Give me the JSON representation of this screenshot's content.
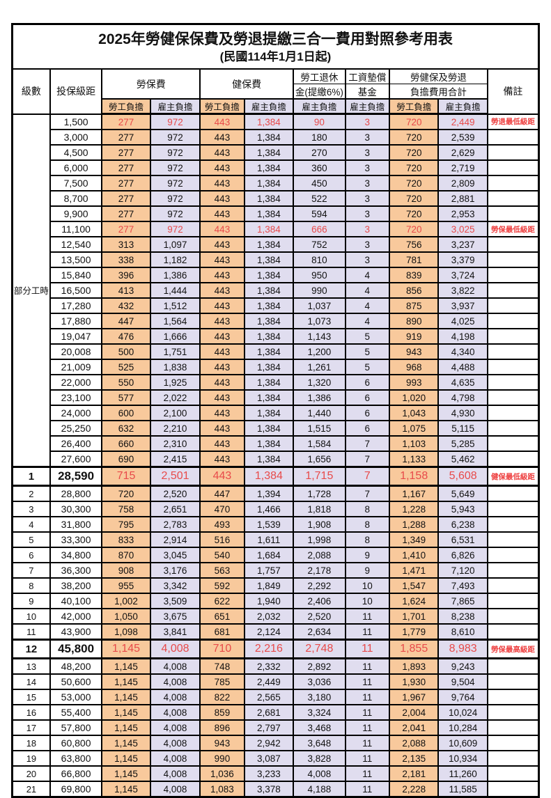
{
  "title": "2025年勞健保保費及勞退提繳三合一費用對照參考用表",
  "subtitle": "(民國114年1月1日起)",
  "headers": {
    "level": "級數",
    "bracket": "投保級距",
    "labor_insurance": "勞保費",
    "health_insurance": "健保費",
    "pension_line1": "勞工退休",
    "pension_line2": "金(提繳6%)",
    "wage_fund_line1": "工資墊償",
    "wage_fund_line2": "基金",
    "total_line1": "勞健保及勞退",
    "total_line2": "負擔費用合計",
    "remark": "備註",
    "employee_burden": "勞工負擔",
    "employer_burden": "雇主負擔"
  },
  "part_time": {
    "label": "部分工時",
    "row_span": 23
  },
  "colors": {
    "employee_bg": "#f8c99c",
    "employer_bg": "#e0ddef",
    "alert_text": "#e84a4a",
    "border": "#000000"
  },
  "rows": [
    {
      "level": "",
      "bracket": "1,500",
      "labor_emp": "277",
      "labor_er": "972",
      "health_emp": "443",
      "health_er": "1,384",
      "pension_er": "90",
      "fund_er": "3",
      "total_emp": "720",
      "total_er": "2,449",
      "remark": "勞退最低級距",
      "style": "alert"
    },
    {
      "level": "",
      "bracket": "3,000",
      "labor_emp": "277",
      "labor_er": "972",
      "health_emp": "443",
      "health_er": "1,384",
      "pension_er": "180",
      "fund_er": "3",
      "total_emp": "720",
      "total_er": "2,539",
      "remark": "",
      "style": ""
    },
    {
      "level": "",
      "bracket": "4,500",
      "labor_emp": "277",
      "labor_er": "972",
      "health_emp": "443",
      "health_er": "1,384",
      "pension_er": "270",
      "fund_er": "3",
      "total_emp": "720",
      "total_er": "2,629",
      "remark": "",
      "style": ""
    },
    {
      "level": "",
      "bracket": "6,000",
      "labor_emp": "277",
      "labor_er": "972",
      "health_emp": "443",
      "health_er": "1,384",
      "pension_er": "360",
      "fund_er": "3",
      "total_emp": "720",
      "total_er": "2,719",
      "remark": "",
      "style": ""
    },
    {
      "level": "",
      "bracket": "7,500",
      "labor_emp": "277",
      "labor_er": "972",
      "health_emp": "443",
      "health_er": "1,384",
      "pension_er": "450",
      "fund_er": "3",
      "total_emp": "720",
      "total_er": "2,809",
      "remark": "",
      "style": ""
    },
    {
      "level": "",
      "bracket": "8,700",
      "labor_emp": "277",
      "labor_er": "972",
      "health_emp": "443",
      "health_er": "1,384",
      "pension_er": "522",
      "fund_er": "3",
      "total_emp": "720",
      "total_er": "2,881",
      "remark": "",
      "style": ""
    },
    {
      "level": "",
      "bracket": "9,900",
      "labor_emp": "277",
      "labor_er": "972",
      "health_emp": "443",
      "health_er": "1,384",
      "pension_er": "594",
      "fund_er": "3",
      "total_emp": "720",
      "total_er": "2,953",
      "remark": "",
      "style": ""
    },
    {
      "level": "",
      "bracket": "11,100",
      "labor_emp": "277",
      "labor_er": "972",
      "health_emp": "443",
      "health_er": "1,384",
      "pension_er": "666",
      "fund_er": "3",
      "total_emp": "720",
      "total_er": "3,025",
      "remark": "勞保最低級距",
      "style": "alert"
    },
    {
      "level": "",
      "bracket": "12,540",
      "labor_emp": "313",
      "labor_er": "1,097",
      "health_emp": "443",
      "health_er": "1,384",
      "pension_er": "752",
      "fund_er": "3",
      "total_emp": "756",
      "total_er": "3,237",
      "remark": "",
      "style": ""
    },
    {
      "level": "",
      "bracket": "13,500",
      "labor_emp": "338",
      "labor_er": "1,182",
      "health_emp": "443",
      "health_er": "1,384",
      "pension_er": "810",
      "fund_er": "3",
      "total_emp": "781",
      "total_er": "3,379",
      "remark": "",
      "style": ""
    },
    {
      "level": "",
      "bracket": "15,840",
      "labor_emp": "396",
      "labor_er": "1,386",
      "health_emp": "443",
      "health_er": "1,384",
      "pension_er": "950",
      "fund_er": "4",
      "total_emp": "839",
      "total_er": "3,724",
      "remark": "",
      "style": ""
    },
    {
      "level": "",
      "bracket": "16,500",
      "labor_emp": "413",
      "labor_er": "1,444",
      "health_emp": "443",
      "health_er": "1,384",
      "pension_er": "990",
      "fund_er": "4",
      "total_emp": "856",
      "total_er": "3,822",
      "remark": "",
      "style": ""
    },
    {
      "level": "",
      "bracket": "17,280",
      "labor_emp": "432",
      "labor_er": "1,512",
      "health_emp": "443",
      "health_er": "1,384",
      "pension_er": "1,037",
      "fund_er": "4",
      "total_emp": "875",
      "total_er": "3,937",
      "remark": "",
      "style": ""
    },
    {
      "level": "",
      "bracket": "17,880",
      "labor_emp": "447",
      "labor_er": "1,564",
      "health_emp": "443",
      "health_er": "1,384",
      "pension_er": "1,073",
      "fund_er": "4",
      "total_emp": "890",
      "total_er": "4,025",
      "remark": "",
      "style": ""
    },
    {
      "level": "",
      "bracket": "19,047",
      "labor_emp": "476",
      "labor_er": "1,666",
      "health_emp": "443",
      "health_er": "1,384",
      "pension_er": "1,143",
      "fund_er": "5",
      "total_emp": "919",
      "total_er": "4,198",
      "remark": "",
      "style": ""
    },
    {
      "level": "",
      "bracket": "20,008",
      "labor_emp": "500",
      "labor_er": "1,751",
      "health_emp": "443",
      "health_er": "1,384",
      "pension_er": "1,200",
      "fund_er": "5",
      "total_emp": "943",
      "total_er": "4,340",
      "remark": "",
      "style": ""
    },
    {
      "level": "",
      "bracket": "21,009",
      "labor_emp": "525",
      "labor_er": "1,838",
      "health_emp": "443",
      "health_er": "1,384",
      "pension_er": "1,261",
      "fund_er": "5",
      "total_emp": "968",
      "total_er": "4,488",
      "remark": "",
      "style": ""
    },
    {
      "level": "",
      "bracket": "22,000",
      "labor_emp": "550",
      "labor_er": "1,925",
      "health_emp": "443",
      "health_er": "1,384",
      "pension_er": "1,320",
      "fund_er": "6",
      "total_emp": "993",
      "total_er": "4,635",
      "remark": "",
      "style": ""
    },
    {
      "level": "",
      "bracket": "23,100",
      "labor_emp": "577",
      "labor_er": "2,022",
      "health_emp": "443",
      "health_er": "1,384",
      "pension_er": "1,386",
      "fund_er": "6",
      "total_emp": "1,020",
      "total_er": "4,798",
      "remark": "",
      "style": ""
    },
    {
      "level": "",
      "bracket": "24,000",
      "labor_emp": "600",
      "labor_er": "2,100",
      "health_emp": "443",
      "health_er": "1,384",
      "pension_er": "1,440",
      "fund_er": "6",
      "total_emp": "1,043",
      "total_er": "4,930",
      "remark": "",
      "style": ""
    },
    {
      "level": "",
      "bracket": "25,250",
      "labor_emp": "632",
      "labor_er": "2,210",
      "health_emp": "443",
      "health_er": "1,384",
      "pension_er": "1,515",
      "fund_er": "6",
      "total_emp": "1,075",
      "total_er": "5,115",
      "remark": "",
      "style": ""
    },
    {
      "level": "",
      "bracket": "26,400",
      "labor_emp": "660",
      "labor_er": "2,310",
      "health_emp": "443",
      "health_er": "1,384",
      "pension_er": "1,584",
      "fund_er": "7",
      "total_emp": "1,103",
      "total_er": "5,285",
      "remark": "",
      "style": ""
    },
    {
      "level": "",
      "bracket": "27,600",
      "labor_emp": "690",
      "labor_er": "2,415",
      "health_emp": "443",
      "health_er": "1,384",
      "pension_er": "1,656",
      "fund_er": "7",
      "total_emp": "1,133",
      "total_er": "5,462",
      "remark": "",
      "style": ""
    },
    {
      "level": "1",
      "bracket": "28,590",
      "labor_emp": "715",
      "labor_er": "2,501",
      "health_emp": "443",
      "health_er": "1,384",
      "pension_er": "1,715",
      "fund_er": "7",
      "total_emp": "1,158",
      "total_er": "5,608",
      "remark": "健保最低級距",
      "style": "emphasis"
    },
    {
      "level": "2",
      "bracket": "28,800",
      "labor_emp": "720",
      "labor_er": "2,520",
      "health_emp": "447",
      "health_er": "1,394",
      "pension_er": "1,728",
      "fund_er": "7",
      "total_emp": "1,167",
      "total_er": "5,649",
      "remark": "",
      "style": ""
    },
    {
      "level": "3",
      "bracket": "30,300",
      "labor_emp": "758",
      "labor_er": "2,651",
      "health_emp": "470",
      "health_er": "1,466",
      "pension_er": "1,818",
      "fund_er": "8",
      "total_emp": "1,228",
      "total_er": "5,943",
      "remark": "",
      "style": ""
    },
    {
      "level": "4",
      "bracket": "31,800",
      "labor_emp": "795",
      "labor_er": "2,783",
      "health_emp": "493",
      "health_er": "1,539",
      "pension_er": "1,908",
      "fund_er": "8",
      "total_emp": "1,288",
      "total_er": "6,238",
      "remark": "",
      "style": ""
    },
    {
      "level": "5",
      "bracket": "33,300",
      "labor_emp": "833",
      "labor_er": "2,914",
      "health_emp": "516",
      "health_er": "1,611",
      "pension_er": "1,998",
      "fund_er": "8",
      "total_emp": "1,349",
      "total_er": "6,531",
      "remark": "",
      "style": ""
    },
    {
      "level": "6",
      "bracket": "34,800",
      "labor_emp": "870",
      "labor_er": "3,045",
      "health_emp": "540",
      "health_er": "1,684",
      "pension_er": "2,088",
      "fund_er": "9",
      "total_emp": "1,410",
      "total_er": "6,826",
      "remark": "",
      "style": ""
    },
    {
      "level": "7",
      "bracket": "36,300",
      "labor_emp": "908",
      "labor_er": "3,176",
      "health_emp": "563",
      "health_er": "1,757",
      "pension_er": "2,178",
      "fund_er": "9",
      "total_emp": "1,471",
      "total_er": "7,120",
      "remark": "",
      "style": ""
    },
    {
      "level": "8",
      "bracket": "38,200",
      "labor_emp": "955",
      "labor_er": "3,342",
      "health_emp": "592",
      "health_er": "1,849",
      "pension_er": "2,292",
      "fund_er": "10",
      "total_emp": "1,547",
      "total_er": "7,493",
      "remark": "",
      "style": ""
    },
    {
      "level": "9",
      "bracket": "40,100",
      "labor_emp": "1,002",
      "labor_er": "3,509",
      "health_emp": "622",
      "health_er": "1,940",
      "pension_er": "2,406",
      "fund_er": "10",
      "total_emp": "1,624",
      "total_er": "7,865",
      "remark": "",
      "style": ""
    },
    {
      "level": "10",
      "bracket": "42,000",
      "labor_emp": "1,050",
      "labor_er": "3,675",
      "health_emp": "651",
      "health_er": "2,032",
      "pension_er": "2,520",
      "fund_er": "11",
      "total_emp": "1,701",
      "total_er": "8,238",
      "remark": "",
      "style": ""
    },
    {
      "level": "11",
      "bracket": "43,900",
      "labor_emp": "1,098",
      "labor_er": "3,841",
      "health_emp": "681",
      "health_er": "2,124",
      "pension_er": "2,634",
      "fund_er": "11",
      "total_emp": "1,779",
      "total_er": "8,610",
      "remark": "",
      "style": ""
    },
    {
      "level": "12",
      "bracket": "45,800",
      "labor_emp": "1,145",
      "labor_er": "4,008",
      "health_emp": "710",
      "health_er": "2,216",
      "pension_er": "2,748",
      "fund_er": "11",
      "total_emp": "1,855",
      "total_er": "8,983",
      "remark": "勞保最高級距",
      "style": "emphasis"
    },
    {
      "level": "13",
      "bracket": "48,200",
      "labor_emp": "1,145",
      "labor_er": "4,008",
      "health_emp": "748",
      "health_er": "2,332",
      "pension_er": "2,892",
      "fund_er": "11",
      "total_emp": "1,893",
      "total_er": "9,243",
      "remark": "",
      "style": ""
    },
    {
      "level": "14",
      "bracket": "50,600",
      "labor_emp": "1,145",
      "labor_er": "4,008",
      "health_emp": "785",
      "health_er": "2,449",
      "pension_er": "3,036",
      "fund_er": "11",
      "total_emp": "1,930",
      "total_er": "9,504",
      "remark": "",
      "style": ""
    },
    {
      "level": "15",
      "bracket": "53,000",
      "labor_emp": "1,145",
      "labor_er": "4,008",
      "health_emp": "822",
      "health_er": "2,565",
      "pension_er": "3,180",
      "fund_er": "11",
      "total_emp": "1,967",
      "total_er": "9,764",
      "remark": "",
      "style": ""
    },
    {
      "level": "16",
      "bracket": "55,400",
      "labor_emp": "1,145",
      "labor_er": "4,008",
      "health_emp": "859",
      "health_er": "2,681",
      "pension_er": "3,324",
      "fund_er": "11",
      "total_emp": "2,004",
      "total_er": "10,024",
      "remark": "",
      "style": ""
    },
    {
      "level": "17",
      "bracket": "57,800",
      "labor_emp": "1,145",
      "labor_er": "4,008",
      "health_emp": "896",
      "health_er": "2,797",
      "pension_er": "3,468",
      "fund_er": "11",
      "total_emp": "2,041",
      "total_er": "10,284",
      "remark": "",
      "style": ""
    },
    {
      "level": "18",
      "bracket": "60,800",
      "labor_emp": "1,145",
      "labor_er": "4,008",
      "health_emp": "943",
      "health_er": "2,942",
      "pension_er": "3,648",
      "fund_er": "11",
      "total_emp": "2,088",
      "total_er": "10,609",
      "remark": "",
      "style": ""
    },
    {
      "level": "19",
      "bracket": "63,800",
      "labor_emp": "1,145",
      "labor_er": "4,008",
      "health_emp": "990",
      "health_er": "3,087",
      "pension_er": "3,828",
      "fund_er": "11",
      "total_emp": "2,135",
      "total_er": "10,934",
      "remark": "",
      "style": ""
    },
    {
      "level": "20",
      "bracket": "66,800",
      "labor_emp": "1,145",
      "labor_er": "4,008",
      "health_emp": "1,036",
      "health_er": "3,233",
      "pension_er": "4,008",
      "fund_er": "11",
      "total_emp": "2,181",
      "total_er": "11,260",
      "remark": "",
      "style": ""
    },
    {
      "level": "21",
      "bracket": "69,800",
      "labor_emp": "1,145",
      "labor_er": "4,008",
      "health_emp": "1,083",
      "health_er": "3,378",
      "pension_er": "4,188",
      "fund_er": "11",
      "total_emp": "2,228",
      "total_er": "11,585",
      "remark": "",
      "style": ""
    }
  ]
}
